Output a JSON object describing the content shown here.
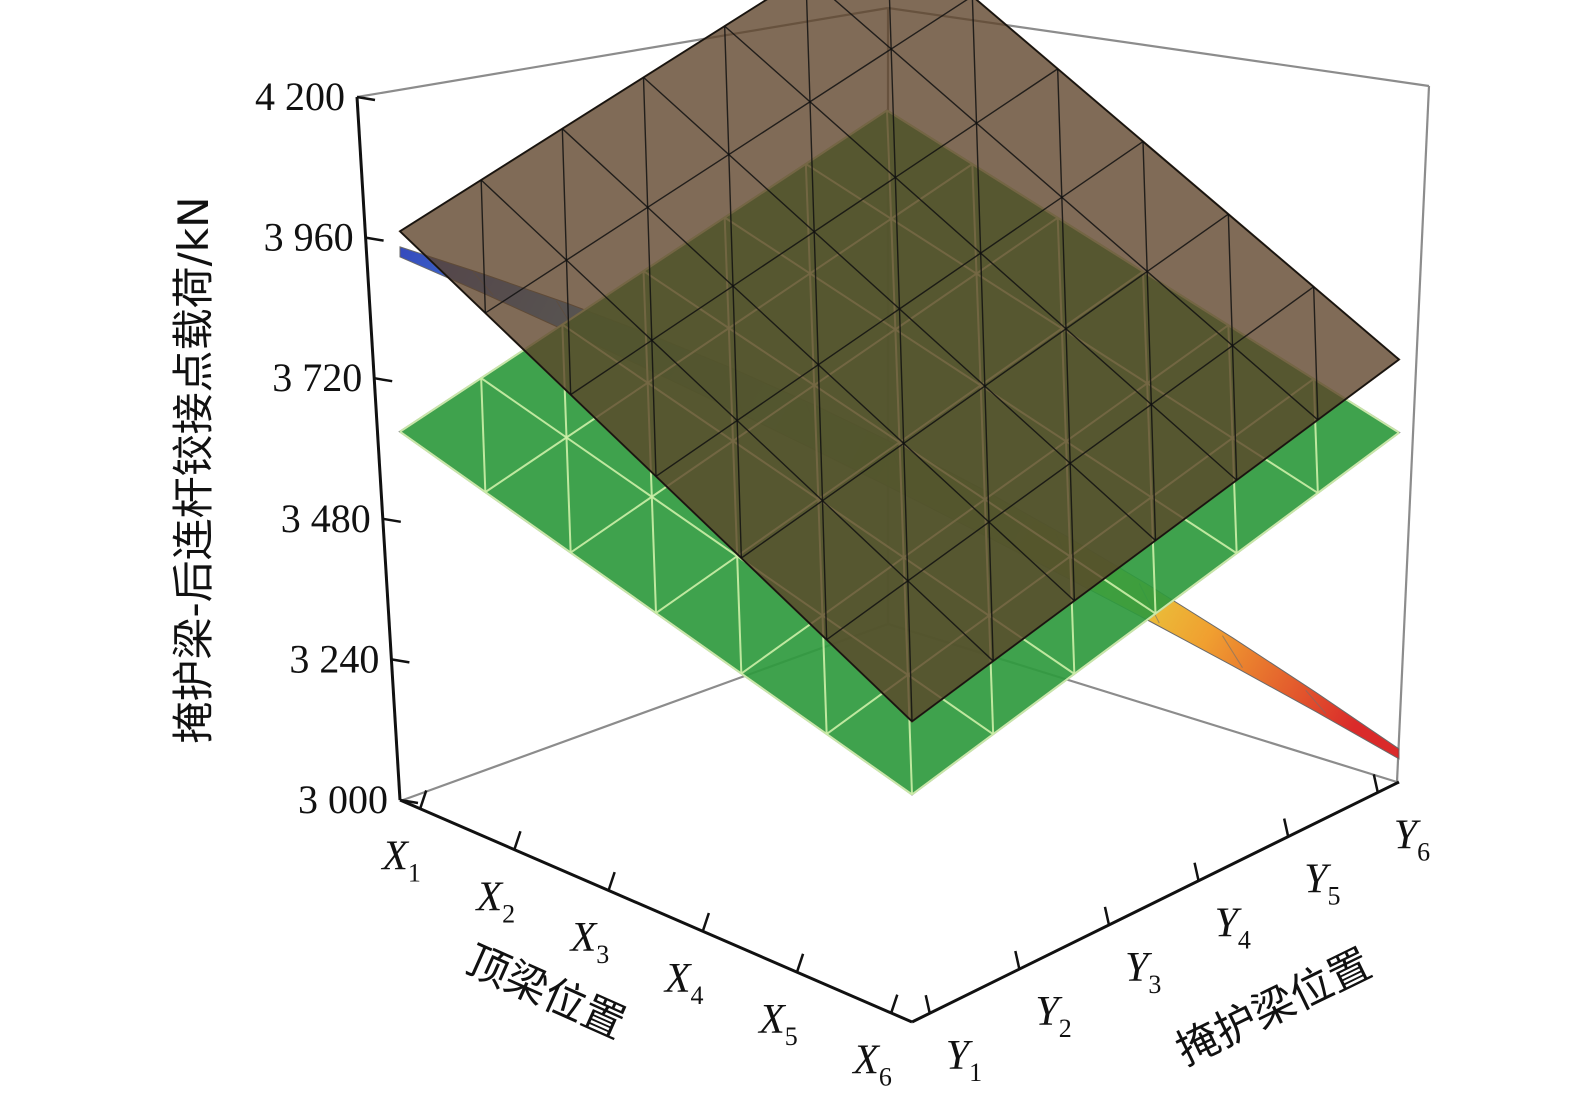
{
  "chart_data": {
    "type": "surface3d",
    "title": "",
    "xlabel": "顶梁位置",
    "ylabel": "掩护梁位置",
    "zlabel": "掩护梁-后连杆铰接点载荷/kN",
    "x_categories": [
      {
        "base": "X",
        "sub": "1"
      },
      {
        "base": "X",
        "sub": "2"
      },
      {
        "base": "X",
        "sub": "3"
      },
      {
        "base": "X",
        "sub": "4"
      },
      {
        "base": "X",
        "sub": "5"
      },
      {
        "base": "X",
        "sub": "6"
      }
    ],
    "y_categories": [
      {
        "base": "Y",
        "sub": "1"
      },
      {
        "base": "Y",
        "sub": "2"
      },
      {
        "base": "Y",
        "sub": "3"
      },
      {
        "base": "Y",
        "sub": "4"
      },
      {
        "base": "Y",
        "sub": "5"
      },
      {
        "base": "Y",
        "sub": "6"
      }
    ],
    "zlim": [
      3000,
      4200
    ],
    "z_ticks": [
      "3 000",
      "3 240",
      "3 480",
      "3 720",
      "3 960",
      "4 200"
    ],
    "surfaces": [
      {
        "name": "",
        "color": "#5c4128",
        "edge_color": "#111111",
        "corners": {
          "x1y1": 4050,
          "x6y1": 3555,
          "x1y6": 4175,
          "x6y6": 3780
        }
      },
      {
        "name": "",
        "color": "#2f9a3e",
        "edge_color": "#cdf0a8",
        "corners": {
          "x1y1": 3680,
          "x6y1": 3420,
          "x1y6": 3830,
          "x6y6": 3645
        }
      },
      {
        "name": "",
        "colormap": [
          "#2a3fb8",
          "#3d8ee0",
          "#58c0c8",
          "#8fd04a",
          "#e3e33a",
          "#ef9a25",
          "#d81f1f"
        ],
        "description_values": {
          "x1y1": 4010,
          "x6y1": 3500,
          "x1y6": 3780,
          "x6y6": 3050
        }
      }
    ]
  }
}
